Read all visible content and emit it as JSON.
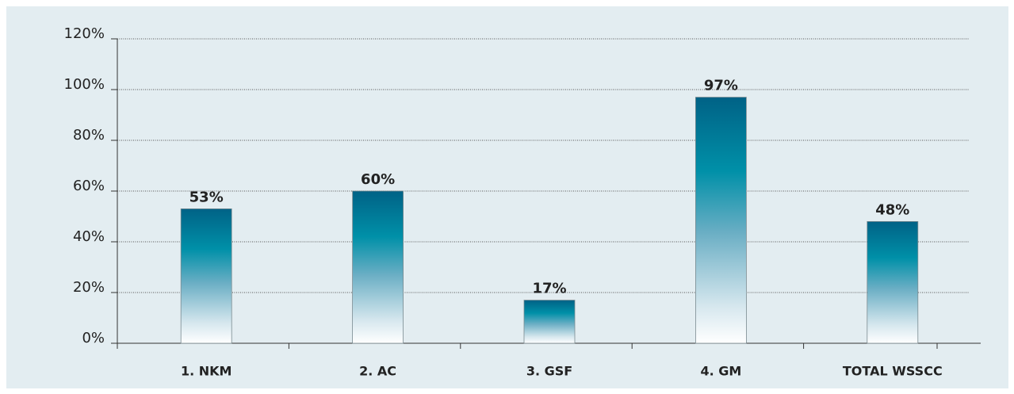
{
  "chart_data": {
    "type": "bar",
    "categories": [
      "1. NKM",
      "2. AC",
      "3. GSF",
      "4. GM",
      "TOTAL WSSCC"
    ],
    "values": [
      53,
      60,
      17,
      97,
      48
    ],
    "value_labels": [
      "53%",
      "60%",
      "17%",
      "97%",
      "48%"
    ],
    "color": "#006a8e",
    "ylim": [
      0,
      120
    ],
    "yticks": [
      {
        "value": 0,
        "label": "0%"
      },
      {
        "value": 20,
        "label": "20%"
      },
      {
        "value": 40,
        "label": "40%"
      },
      {
        "value": 60,
        "label": "60%"
      },
      {
        "value": 80,
        "label": "80%"
      },
      {
        "value": 100,
        "label": "100%"
      },
      {
        "value": 120,
        "label": "120%"
      }
    ],
    "grid": true
  }
}
